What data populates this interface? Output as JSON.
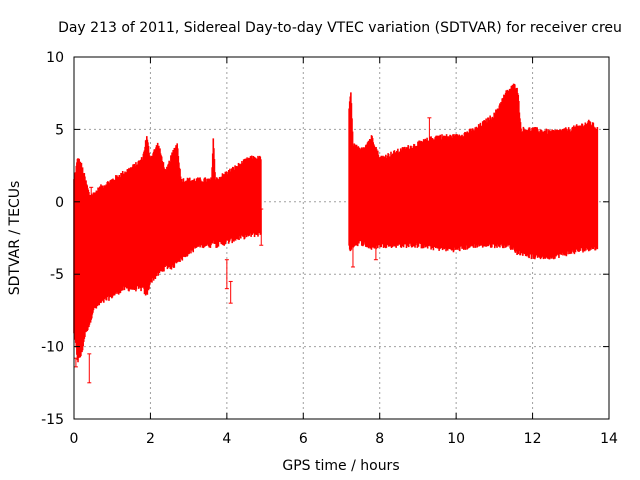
{
  "chart_data": {
    "type": "errorbar",
    "title": "Day 213 of 2011, Sidereal Day-to-day VTEC variation (SDTVAR) for receiver creu",
    "xlabel": "GPS time / hours",
    "ylabel": "SDTVAR / TECUs",
    "xlim": [
      0,
      14
    ],
    "ylim": [
      -15,
      10
    ],
    "xticks": [
      0,
      2,
      4,
      6,
      8,
      10,
      12,
      14
    ],
    "yticks": [
      -15,
      -10,
      -5,
      0,
      5,
      10
    ],
    "grid": true,
    "series": [
      {
        "name": "SDTVAR",
        "color": "#ff0000",
        "segments": [
          {
            "note": "upper envelope / lower envelope of error bars (TECU), approximate",
            "x": [
              0.0,
              0.1,
              0.2,
              0.3,
              0.4,
              0.5,
              0.7,
              1.0,
              1.3,
              1.6,
              1.8,
              1.9,
              2.0,
              2.2,
              2.4,
              2.6,
              2.7,
              2.8,
              3.0,
              3.3,
              3.6,
              3.65,
              3.7,
              4.0,
              4.3,
              4.6,
              4.9
            ],
            "upper": [
              1.5,
              3.0,
              2.5,
              1.5,
              0.5,
              0.5,
              1.0,
              1.5,
              2.0,
              2.5,
              3.0,
              4.5,
              3.0,
              4.0,
              2.0,
              3.5,
              4.0,
              1.5,
              1.5,
              1.5,
              1.5,
              4.5,
              1.5,
              2.0,
              2.5,
              3.0,
              3.0
            ],
            "lower": [
              -9.0,
              -11.0,
              -10.5,
              -9.0,
              -8.5,
              -7.5,
              -7.0,
              -6.5,
              -6.0,
              -6.0,
              -6.0,
              -6.5,
              -5.5,
              -5.0,
              -4.5,
              -4.5,
              -4.0,
              -4.0,
              -3.5,
              -3.0,
              -3.0,
              -2.5,
              -3.0,
              -2.8,
              -2.5,
              -2.3,
              -2.2
            ]
          },
          {
            "x": [
              7.2,
              7.25,
              7.3,
              7.5,
              7.8,
              8.0,
              8.5,
              9.0,
              9.5,
              10.0,
              10.5,
              11.0,
              11.3,
              11.5,
              11.6,
              11.7,
              12.0,
              12.5,
              13.0,
              13.5,
              13.7
            ],
            "upper": [
              6.5,
              7.5,
              4.0,
              3.5,
              4.5,
              3.0,
              3.5,
              4.0,
              4.5,
              4.5,
              5.0,
              6.0,
              7.5,
              8.0,
              8.0,
              5.0,
              5.0,
              4.8,
              5.0,
              5.5,
              5.0
            ],
            "lower": [
              -3.0,
              -3.5,
              -3.0,
              -2.8,
              -3.2,
              -3.0,
              -3.0,
              -3.0,
              -3.2,
              -3.3,
              -3.0,
              -3.0,
              -3.0,
              -3.2,
              -3.5,
              -3.5,
              -3.8,
              -3.8,
              -3.5,
              -3.2,
              -3.2
            ]
          }
        ],
        "outliers": [
          {
            "x": 0.05,
            "lo": -11.4,
            "hi": -10.8
          },
          {
            "x": 0.2,
            "lo": -9.5,
            "hi": -8.5
          },
          {
            "x": 0.4,
            "lo": -12.5,
            "hi": -10.5
          },
          {
            "x": 0.45,
            "lo": -1.0,
            "hi": 1.0
          },
          {
            "x": 4.0,
            "lo": -6.0,
            "hi": -4.0
          },
          {
            "x": 4.1,
            "lo": -7.0,
            "hi": -5.5
          },
          {
            "x": 4.9,
            "lo": -3.0,
            "hi": -0.5
          },
          {
            "x": 7.3,
            "lo": -4.5,
            "hi": -3.0
          },
          {
            "x": 7.9,
            "lo": -4.0,
            "hi": -3.0
          },
          {
            "x": 9.3,
            "lo": 3.5,
            "hi": 5.8
          }
        ]
      }
    ]
  }
}
